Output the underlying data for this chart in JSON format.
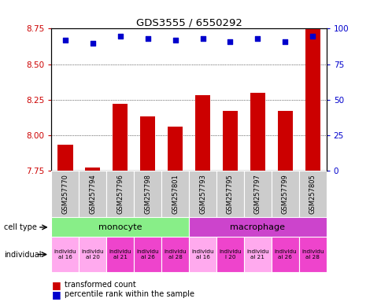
{
  "title": "GDS3555 / 6550292",
  "samples": [
    "GSM257770",
    "GSM257794",
    "GSM257796",
    "GSM257798",
    "GSM257801",
    "GSM257793",
    "GSM257795",
    "GSM257797",
    "GSM257799",
    "GSM257805"
  ],
  "bar_values": [
    7.93,
    7.77,
    8.22,
    8.13,
    8.06,
    8.28,
    8.17,
    8.3,
    8.17,
    8.75
  ],
  "percentile_values": [
    92,
    90,
    95,
    93,
    92,
    93,
    91,
    93,
    91,
    95
  ],
  "ylim_left": [
    7.75,
    8.75
  ],
  "ylim_right": [
    0,
    100
  ],
  "yticks_left": [
    7.75,
    8.0,
    8.25,
    8.5,
    8.75
  ],
  "yticks_right": [
    0,
    25,
    50,
    75,
    100
  ],
  "bar_color": "#cc0000",
  "dot_color": "#0000cc",
  "cell_type_colors": [
    "#88ee88",
    "#cc44cc"
  ],
  "cell_type_labels": [
    "monocyte",
    "macrophage"
  ],
  "cell_type_ranges": [
    [
      0,
      5
    ],
    [
      5,
      10
    ]
  ],
  "indiv_labels_short": [
    "individu\nal 16",
    "individu\nal 20",
    "individu\nal 21",
    "individu\nal 26",
    "individu\nal 28",
    "individu\nal 16",
    "individu\nl 20",
    "individu\nal 21",
    "individu\nal 26",
    "individu\nal 28"
  ],
  "indiv_colors": [
    "#ffaaee",
    "#ffaaee",
    "#ee44cc",
    "#ee44cc",
    "#ee44cc",
    "#ffaaee",
    "#ee44cc",
    "#ffaaee",
    "#ee44cc",
    "#ee44cc"
  ],
  "bg_color": "#ffffff",
  "tick_label_color_left": "#cc0000",
  "tick_label_color_right": "#0000cc",
  "sample_bg_color": "#cccccc"
}
